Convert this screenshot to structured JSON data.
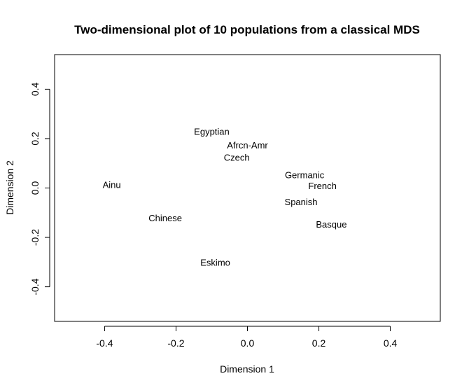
{
  "chart_data": {
    "type": "scatter",
    "title": "Two-dimensional plot of 10 populations from a classical MDS",
    "xlabel": "Dimension 1",
    "ylabel": "Dimension 2",
    "xlim": [
      -0.54,
      0.54
    ],
    "ylim": [
      -0.54,
      0.54
    ],
    "xticks": [
      -0.4,
      -0.2,
      0.0,
      0.2,
      0.4
    ],
    "yticks": [
      -0.4,
      -0.2,
      0.0,
      0.2,
      0.4
    ],
    "xtick_labels": [
      "-0.4",
      "-0.2",
      "0.0",
      "0.2",
      "0.4"
    ],
    "ytick_labels": [
      "-0.4",
      "-0.2",
      "0.0",
      "0.2",
      "0.4"
    ],
    "grid": false,
    "markers": "text-labels",
    "points": [
      {
        "label": "Ainu",
        "x": -0.38,
        "y": 0.01
      },
      {
        "label": "Egyptian",
        "x": -0.1,
        "y": 0.225
      },
      {
        "label": "Afrcn-Amr",
        "x": 0.0,
        "y": 0.17
      },
      {
        "label": "Czech",
        "x": -0.03,
        "y": 0.12
      },
      {
        "label": "Germanic",
        "x": 0.16,
        "y": 0.05
      },
      {
        "label": "French",
        "x": 0.21,
        "y": 0.005
      },
      {
        "label": "Spanish",
        "x": 0.15,
        "y": -0.06
      },
      {
        "label": "Basque",
        "x": 0.235,
        "y": -0.15
      },
      {
        "label": "Chinese",
        "x": -0.23,
        "y": -0.125
      },
      {
        "label": "Eskimo",
        "x": -0.09,
        "y": -0.305
      }
    ]
  }
}
